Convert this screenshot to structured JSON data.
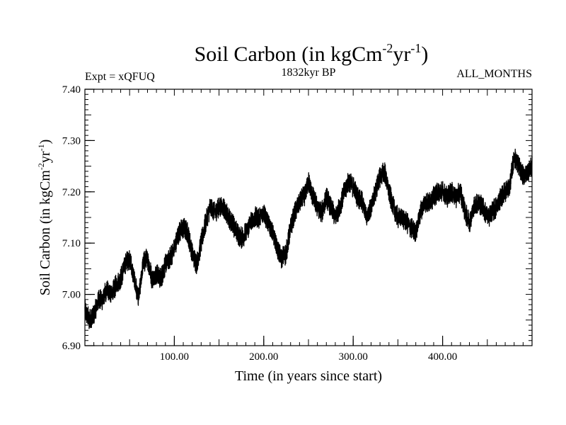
{
  "chart_data": {
    "type": "line",
    "title": "Soil Carbon (in kgCm",
    "title_sup1": "-2",
    "title_mid": "yr",
    "title_sup2": "-1",
    "title_end": ")",
    "subtitle_left": "Expt = xQFUQ",
    "subtitle_center": "1832kyr BP",
    "subtitle_right": "ALL_MONTHS",
    "xlabel": "Time (in years since start)",
    "ylabel": "Soil Carbon (in kgCm",
    "ylabel_sup1": "-2",
    "ylabel_mid": "yr",
    "ylabel_sup2": "-1",
    "ylabel_end": ")",
    "xlim": [
      0,
      500
    ],
    "ylim": [
      6.9,
      7.4
    ],
    "x_ticks": [
      100,
      200,
      300,
      400
    ],
    "x_tick_labels": [
      "100.00",
      "200.00",
      "300.00",
      "400.00"
    ],
    "y_ticks": [
      6.9,
      7.0,
      7.1,
      7.2,
      7.3,
      7.4
    ],
    "y_tick_labels": [
      "6.90",
      "7.00",
      "7.10",
      "7.20",
      "7.30",
      "7.40"
    ],
    "line_color": "#000000",
    "series": [
      {
        "name": "Soil Carbon",
        "x": [
          0,
          5,
          10,
          15,
          20,
          25,
          30,
          35,
          40,
          45,
          50,
          55,
          60,
          65,
          70,
          75,
          80,
          85,
          90,
          95,
          100,
          105,
          110,
          115,
          120,
          125,
          130,
          135,
          140,
          145,
          150,
          155,
          160,
          165,
          170,
          175,
          180,
          185,
          190,
          195,
          200,
          205,
          210,
          215,
          220,
          225,
          230,
          235,
          240,
          245,
          250,
          255,
          260,
          265,
          270,
          275,
          280,
          285,
          290,
          295,
          300,
          305,
          310,
          315,
          320,
          325,
          330,
          335,
          340,
          345,
          350,
          355,
          360,
          365,
          370,
          375,
          380,
          385,
          390,
          395,
          400,
          405,
          410,
          415,
          420,
          425,
          430,
          435,
          440,
          445,
          450,
          455,
          460,
          465,
          470,
          475,
          480,
          485,
          490,
          495,
          500
        ],
        "y": [
          6.97,
          6.95,
          6.96,
          6.99,
          6.99,
          7.01,
          7.0,
          7.02,
          7.03,
          7.06,
          7.07,
          7.03,
          6.99,
          7.06,
          7.07,
          7.03,
          7.04,
          7.03,
          7.06,
          7.07,
          7.09,
          7.12,
          7.13,
          7.12,
          7.08,
          7.06,
          7.1,
          7.14,
          7.17,
          7.16,
          7.17,
          7.17,
          7.15,
          7.14,
          7.12,
          7.11,
          7.12,
          7.14,
          7.15,
          7.15,
          7.16,
          7.14,
          7.12,
          7.09,
          7.07,
          7.08,
          7.13,
          7.16,
          7.18,
          7.19,
          7.22,
          7.19,
          7.17,
          7.16,
          7.19,
          7.17,
          7.15,
          7.17,
          7.2,
          7.22,
          7.21,
          7.19,
          7.18,
          7.15,
          7.17,
          7.2,
          7.23,
          7.24,
          7.2,
          7.17,
          7.15,
          7.15,
          7.14,
          7.13,
          7.12,
          7.16,
          7.18,
          7.18,
          7.19,
          7.2,
          7.2,
          7.19,
          7.2,
          7.19,
          7.2,
          7.16,
          7.14,
          7.17,
          7.18,
          7.17,
          7.15,
          7.16,
          7.17,
          7.19,
          7.2,
          7.21,
          7.27,
          7.25,
          7.23,
          7.24,
          7.25
        ]
      }
    ]
  }
}
